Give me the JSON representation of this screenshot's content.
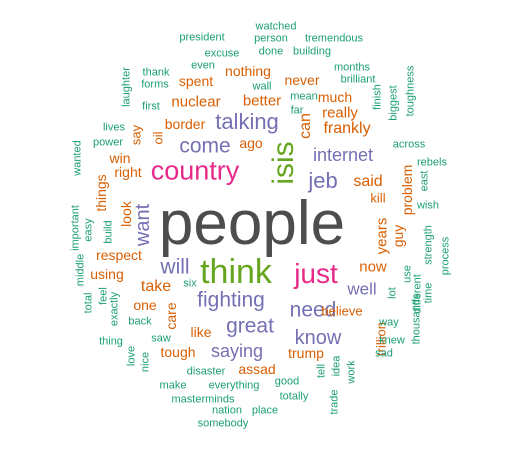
{
  "palette": {
    "g1": "#4d4d4d",
    "g2": "#1b9e77",
    "g3": "#d95f02",
    "g4": "#7570b3",
    "g5": "#e7298a",
    "g6": "#66a61e"
  },
  "words": [
    {
      "text": "people",
      "group": "g1",
      "level": 10
    },
    {
      "text": "think",
      "group": "g6",
      "level": 7
    },
    {
      "text": "country",
      "group": "g5",
      "level": 6
    },
    {
      "text": "isis",
      "group": "g6",
      "level": 6
    },
    {
      "text": "just",
      "group": "g5",
      "level": 6
    },
    {
      "text": "fighting",
      "group": "g4",
      "level": 5
    },
    {
      "text": "talking",
      "group": "g4",
      "level": 5
    },
    {
      "text": "jeb",
      "group": "g4",
      "level": 4
    },
    {
      "text": "come",
      "group": "g4",
      "level": 4
    },
    {
      "text": "internet",
      "group": "g4",
      "level": 4
    },
    {
      "text": "will",
      "group": "g4",
      "level": 4
    },
    {
      "text": "great",
      "group": "g4",
      "level": 4
    },
    {
      "text": "need",
      "group": "g4",
      "level": 4
    },
    {
      "text": "know",
      "group": "g4",
      "level": 4
    },
    {
      "text": "want",
      "group": "g4",
      "level": 4
    },
    {
      "text": "saying",
      "group": "g4",
      "level": 3
    },
    {
      "text": "well",
      "group": "g4",
      "level": 3
    },
    {
      "text": "now",
      "group": "g3",
      "level": 3
    },
    {
      "text": "said",
      "group": "g3",
      "level": 3
    },
    {
      "text": "take",
      "group": "g3",
      "level": 3
    },
    {
      "text": "frankly",
      "group": "g3",
      "level": 3
    },
    {
      "text": "can",
      "group": "g3",
      "level": 3
    },
    {
      "text": "better",
      "group": "g3",
      "level": 3
    },
    {
      "text": "nuclear",
      "group": "g3",
      "level": 3
    },
    {
      "text": "really",
      "group": "g3",
      "level": 3
    },
    {
      "text": "much",
      "group": "g3",
      "level": 2
    },
    {
      "text": "trump",
      "group": "g3",
      "level": 2
    },
    {
      "text": "years",
      "group": "g3",
      "level": 2
    },
    {
      "text": "respect",
      "group": "g3",
      "level": 2
    },
    {
      "text": "border",
      "group": "g3",
      "level": 2
    },
    {
      "text": "tough",
      "group": "g3",
      "level": 2
    },
    {
      "text": "believe",
      "group": "g3",
      "level": 2
    },
    {
      "text": "like",
      "group": "g3",
      "level": 2
    },
    {
      "text": "never",
      "group": "g3",
      "level": 2
    },
    {
      "text": "spent",
      "group": "g3",
      "level": 2
    },
    {
      "text": "nothing",
      "group": "g3",
      "level": 2
    },
    {
      "text": "assad",
      "group": "g3",
      "level": 2
    },
    {
      "text": "ago",
      "group": "g3",
      "level": 2
    },
    {
      "text": "look",
      "group": "g3",
      "level": 2
    },
    {
      "text": "things",
      "group": "g3",
      "level": 2
    },
    {
      "text": "win",
      "group": "g3",
      "level": 2
    },
    {
      "text": "right",
      "group": "g3",
      "level": 2
    },
    {
      "text": "using",
      "group": "g3",
      "level": 2
    },
    {
      "text": "one",
      "group": "g3",
      "level": 2
    },
    {
      "text": "care",
      "group": "g3",
      "level": 2
    },
    {
      "text": "guy",
      "group": "g3",
      "level": 2
    },
    {
      "text": "problem",
      "group": "g3",
      "level": 2
    },
    {
      "text": "trillion",
      "group": "g3",
      "level": 2
    },
    {
      "text": "kill",
      "group": "g3",
      "level": 2
    },
    {
      "text": "say",
      "group": "g3",
      "level": 2
    },
    {
      "text": "oil",
      "group": "g3",
      "level": 2
    },
    {
      "text": "watched",
      "group": "g2",
      "level": 1
    },
    {
      "text": "president",
      "group": "g2",
      "level": 1
    },
    {
      "text": "person",
      "group": "g2",
      "level": 1
    },
    {
      "text": "tremendous",
      "group": "g2",
      "level": 1
    },
    {
      "text": "excuse",
      "group": "g2",
      "level": 1
    },
    {
      "text": "done",
      "group": "g2",
      "level": 1
    },
    {
      "text": "building",
      "group": "g2",
      "level": 1
    },
    {
      "text": "even",
      "group": "g2",
      "level": 1
    },
    {
      "text": "months",
      "group": "g2",
      "level": 1
    },
    {
      "text": "thank",
      "group": "g2",
      "level": 1
    },
    {
      "text": "forms",
      "group": "g2",
      "level": 1
    },
    {
      "text": "brilliant",
      "group": "g2",
      "level": 1
    },
    {
      "text": "laughter",
      "group": "g2",
      "level": 1
    },
    {
      "text": "wall",
      "group": "g2",
      "level": 1
    },
    {
      "text": "mean",
      "group": "g2",
      "level": 1
    },
    {
      "text": "far",
      "group": "g2",
      "level": 1
    },
    {
      "text": "finish",
      "group": "g2",
      "level": 1
    },
    {
      "text": "biggest",
      "group": "g2",
      "level": 1
    },
    {
      "text": "toughness",
      "group": "g2",
      "level": 1
    },
    {
      "text": "first",
      "group": "g2",
      "level": 1
    },
    {
      "text": "lives",
      "group": "g2",
      "level": 1
    },
    {
      "text": "power",
      "group": "g2",
      "level": 1
    },
    {
      "text": "across",
      "group": "g2",
      "level": 1
    },
    {
      "text": "wanted",
      "group": "g2",
      "level": 1
    },
    {
      "text": "rebels",
      "group": "g2",
      "level": 1
    },
    {
      "text": "east",
      "group": "g2",
      "level": 1
    },
    {
      "text": "wish",
      "group": "g2",
      "level": 1
    },
    {
      "text": "important",
      "group": "g2",
      "level": 1
    },
    {
      "text": "easy",
      "group": "g2",
      "level": 1
    },
    {
      "text": "build",
      "group": "g2",
      "level": 1
    },
    {
      "text": "middle",
      "group": "g2",
      "level": 1
    },
    {
      "text": "strength",
      "group": "g2",
      "level": 1
    },
    {
      "text": "process",
      "group": "g2",
      "level": 1
    },
    {
      "text": "use",
      "group": "g2",
      "level": 1
    },
    {
      "text": "lot",
      "group": "g2",
      "level": 1
    },
    {
      "text": "different",
      "group": "g2",
      "level": 1
    },
    {
      "text": "time",
      "group": "g2",
      "level": 1
    },
    {
      "text": "six",
      "group": "g2",
      "level": 1
    },
    {
      "text": "feel",
      "group": "g2",
      "level": 1
    },
    {
      "text": "total",
      "group": "g2",
      "level": 1
    },
    {
      "text": "exactly",
      "group": "g2",
      "level": 1
    },
    {
      "text": "back",
      "group": "g2",
      "level": 1
    },
    {
      "text": "way",
      "group": "g2",
      "level": 1
    },
    {
      "text": "thousands",
      "group": "g2",
      "level": 1
    },
    {
      "text": "knew",
      "group": "g2",
      "level": 1
    },
    {
      "text": "sad",
      "group": "g2",
      "level": 1
    },
    {
      "text": "thing",
      "group": "g2",
      "level": 1
    },
    {
      "text": "saw",
      "group": "g2",
      "level": 1
    },
    {
      "text": "love",
      "group": "g2",
      "level": 1
    },
    {
      "text": "nice",
      "group": "g2",
      "level": 1
    },
    {
      "text": "disaster",
      "group": "g2",
      "level": 1
    },
    {
      "text": "make",
      "group": "g2",
      "level": 1
    },
    {
      "text": "everything",
      "group": "g2",
      "level": 1
    },
    {
      "text": "masterminds",
      "group": "g2",
      "level": 1
    },
    {
      "text": "nation",
      "group": "g2",
      "level": 1
    },
    {
      "text": "place",
      "group": "g2",
      "level": 1
    },
    {
      "text": "somebody",
      "group": "g2",
      "level": 1
    },
    {
      "text": "good",
      "group": "g2",
      "level": 1
    },
    {
      "text": "totally",
      "group": "g2",
      "level": 1
    },
    {
      "text": "tell",
      "group": "g2",
      "level": 1
    },
    {
      "text": "idea",
      "group": "g2",
      "level": 1
    },
    {
      "text": "work",
      "group": "g2",
      "level": 1
    },
    {
      "text": "trade",
      "group": "g2",
      "level": 1
    }
  ]
}
